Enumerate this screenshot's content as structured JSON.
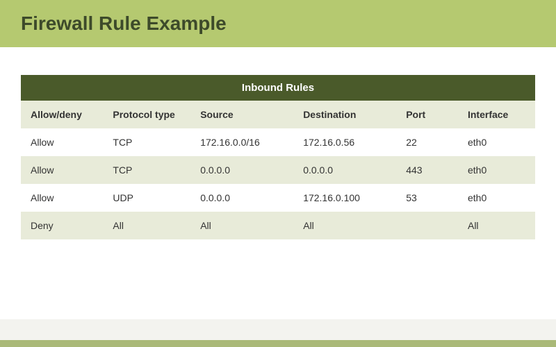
{
  "title": "Firewall Rule Example",
  "colors": {
    "title_bg": "#b5c970",
    "title_text": "#3d4a2a",
    "table_header_bg": "#4a5a2a",
    "table_header_text": "#ffffff",
    "col_header_bg": "#e8ebd9",
    "col_header_text": "#333333",
    "row_even_bg": "#ffffff",
    "row_odd_bg": "#e8ebd9"
  },
  "table": {
    "group_header": "Inbound Rules",
    "columns": [
      "Allow/deny",
      "Protocol type",
      "Source",
      "Destination",
      "Port",
      "Interface"
    ],
    "column_widths": [
      "16%",
      "17%",
      "20%",
      "20%",
      "12%",
      "15%"
    ],
    "rows": [
      [
        "Allow",
        "TCP",
        "172.16.0.0/16",
        "172.16.0.56",
        "22",
        "eth0"
      ],
      [
        "Allow",
        "TCP",
        "0.0.0.0",
        "0.0.0.0",
        "443",
        "eth0"
      ],
      [
        "Allow",
        "UDP",
        "0.0.0.0",
        "172.16.0.100",
        "53",
        "eth0"
      ],
      [
        "Deny",
        "All",
        "All",
        "All",
        "",
        "All"
      ]
    ]
  }
}
